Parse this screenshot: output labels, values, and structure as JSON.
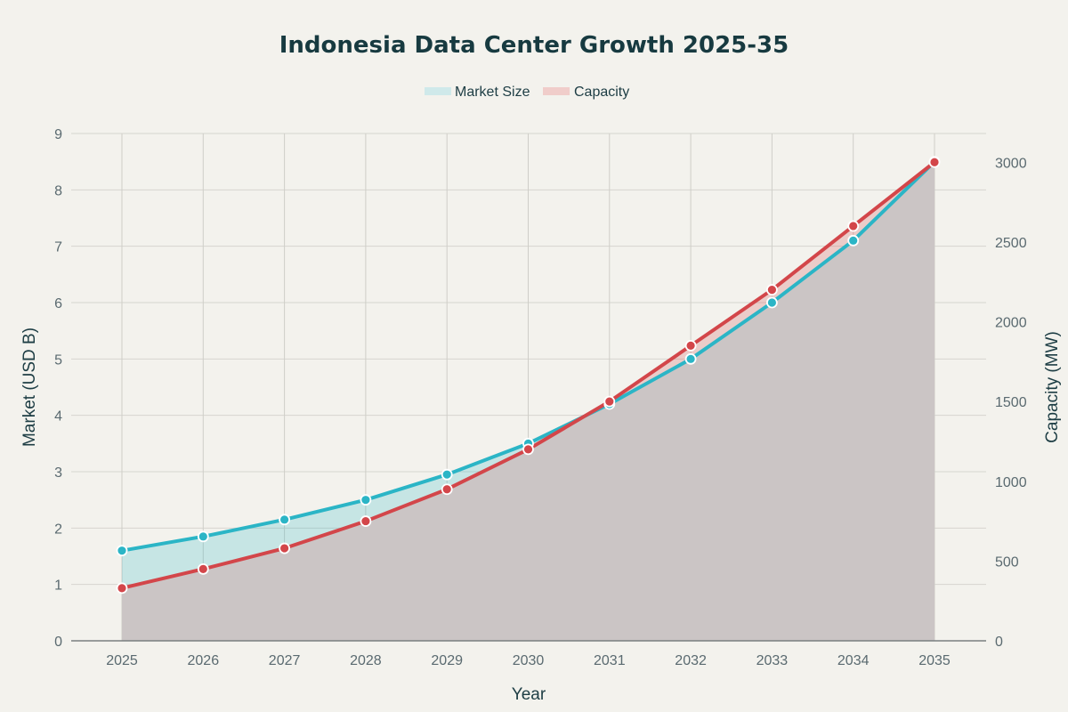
{
  "chart_data": {
    "type": "line",
    "title": "Indonesia Data Center Growth 2025-35",
    "xlabel": "Year",
    "ylabel": "Market (USD B)",
    "y2label": "Capacity (MW)",
    "categories": [
      "2025",
      "2026",
      "2027",
      "2028",
      "2029",
      "2030",
      "2031",
      "2032",
      "2033",
      "2034",
      "2035"
    ],
    "ylim": [
      0,
      9
    ],
    "y2lim": [
      0,
      3180
    ],
    "yticks": [
      "0",
      "1",
      "2",
      "3",
      "4",
      "5",
      "6",
      "7",
      "8",
      "9"
    ],
    "y2ticks": [
      "0",
      "500",
      "1000",
      "1500",
      "2000",
      "2500",
      "3000"
    ],
    "grid": true,
    "legend_position": "top-center",
    "series": [
      {
        "name": "Market Size",
        "axis": "left",
        "values": [
          1.6,
          1.85,
          2.15,
          2.5,
          2.95,
          3.5,
          4.2,
          5.0,
          6.0,
          7.1,
          8.5
        ],
        "color": "#2bb5c6",
        "fill": "rgba(43,181,198,0.22)",
        "legend_swatch": "#cfe9ea"
      },
      {
        "name": "Capacity",
        "axis": "right",
        "values": [
          330,
          450,
          580,
          750,
          950,
          1200,
          1500,
          1850,
          2200,
          2600,
          3000
        ],
        "color": "#d3464a",
        "fill": "rgba(211,70,74,0.22)",
        "legend_swatch": "#f0cdca"
      }
    ],
    "overlap_fill": "#cbc5c5"
  }
}
